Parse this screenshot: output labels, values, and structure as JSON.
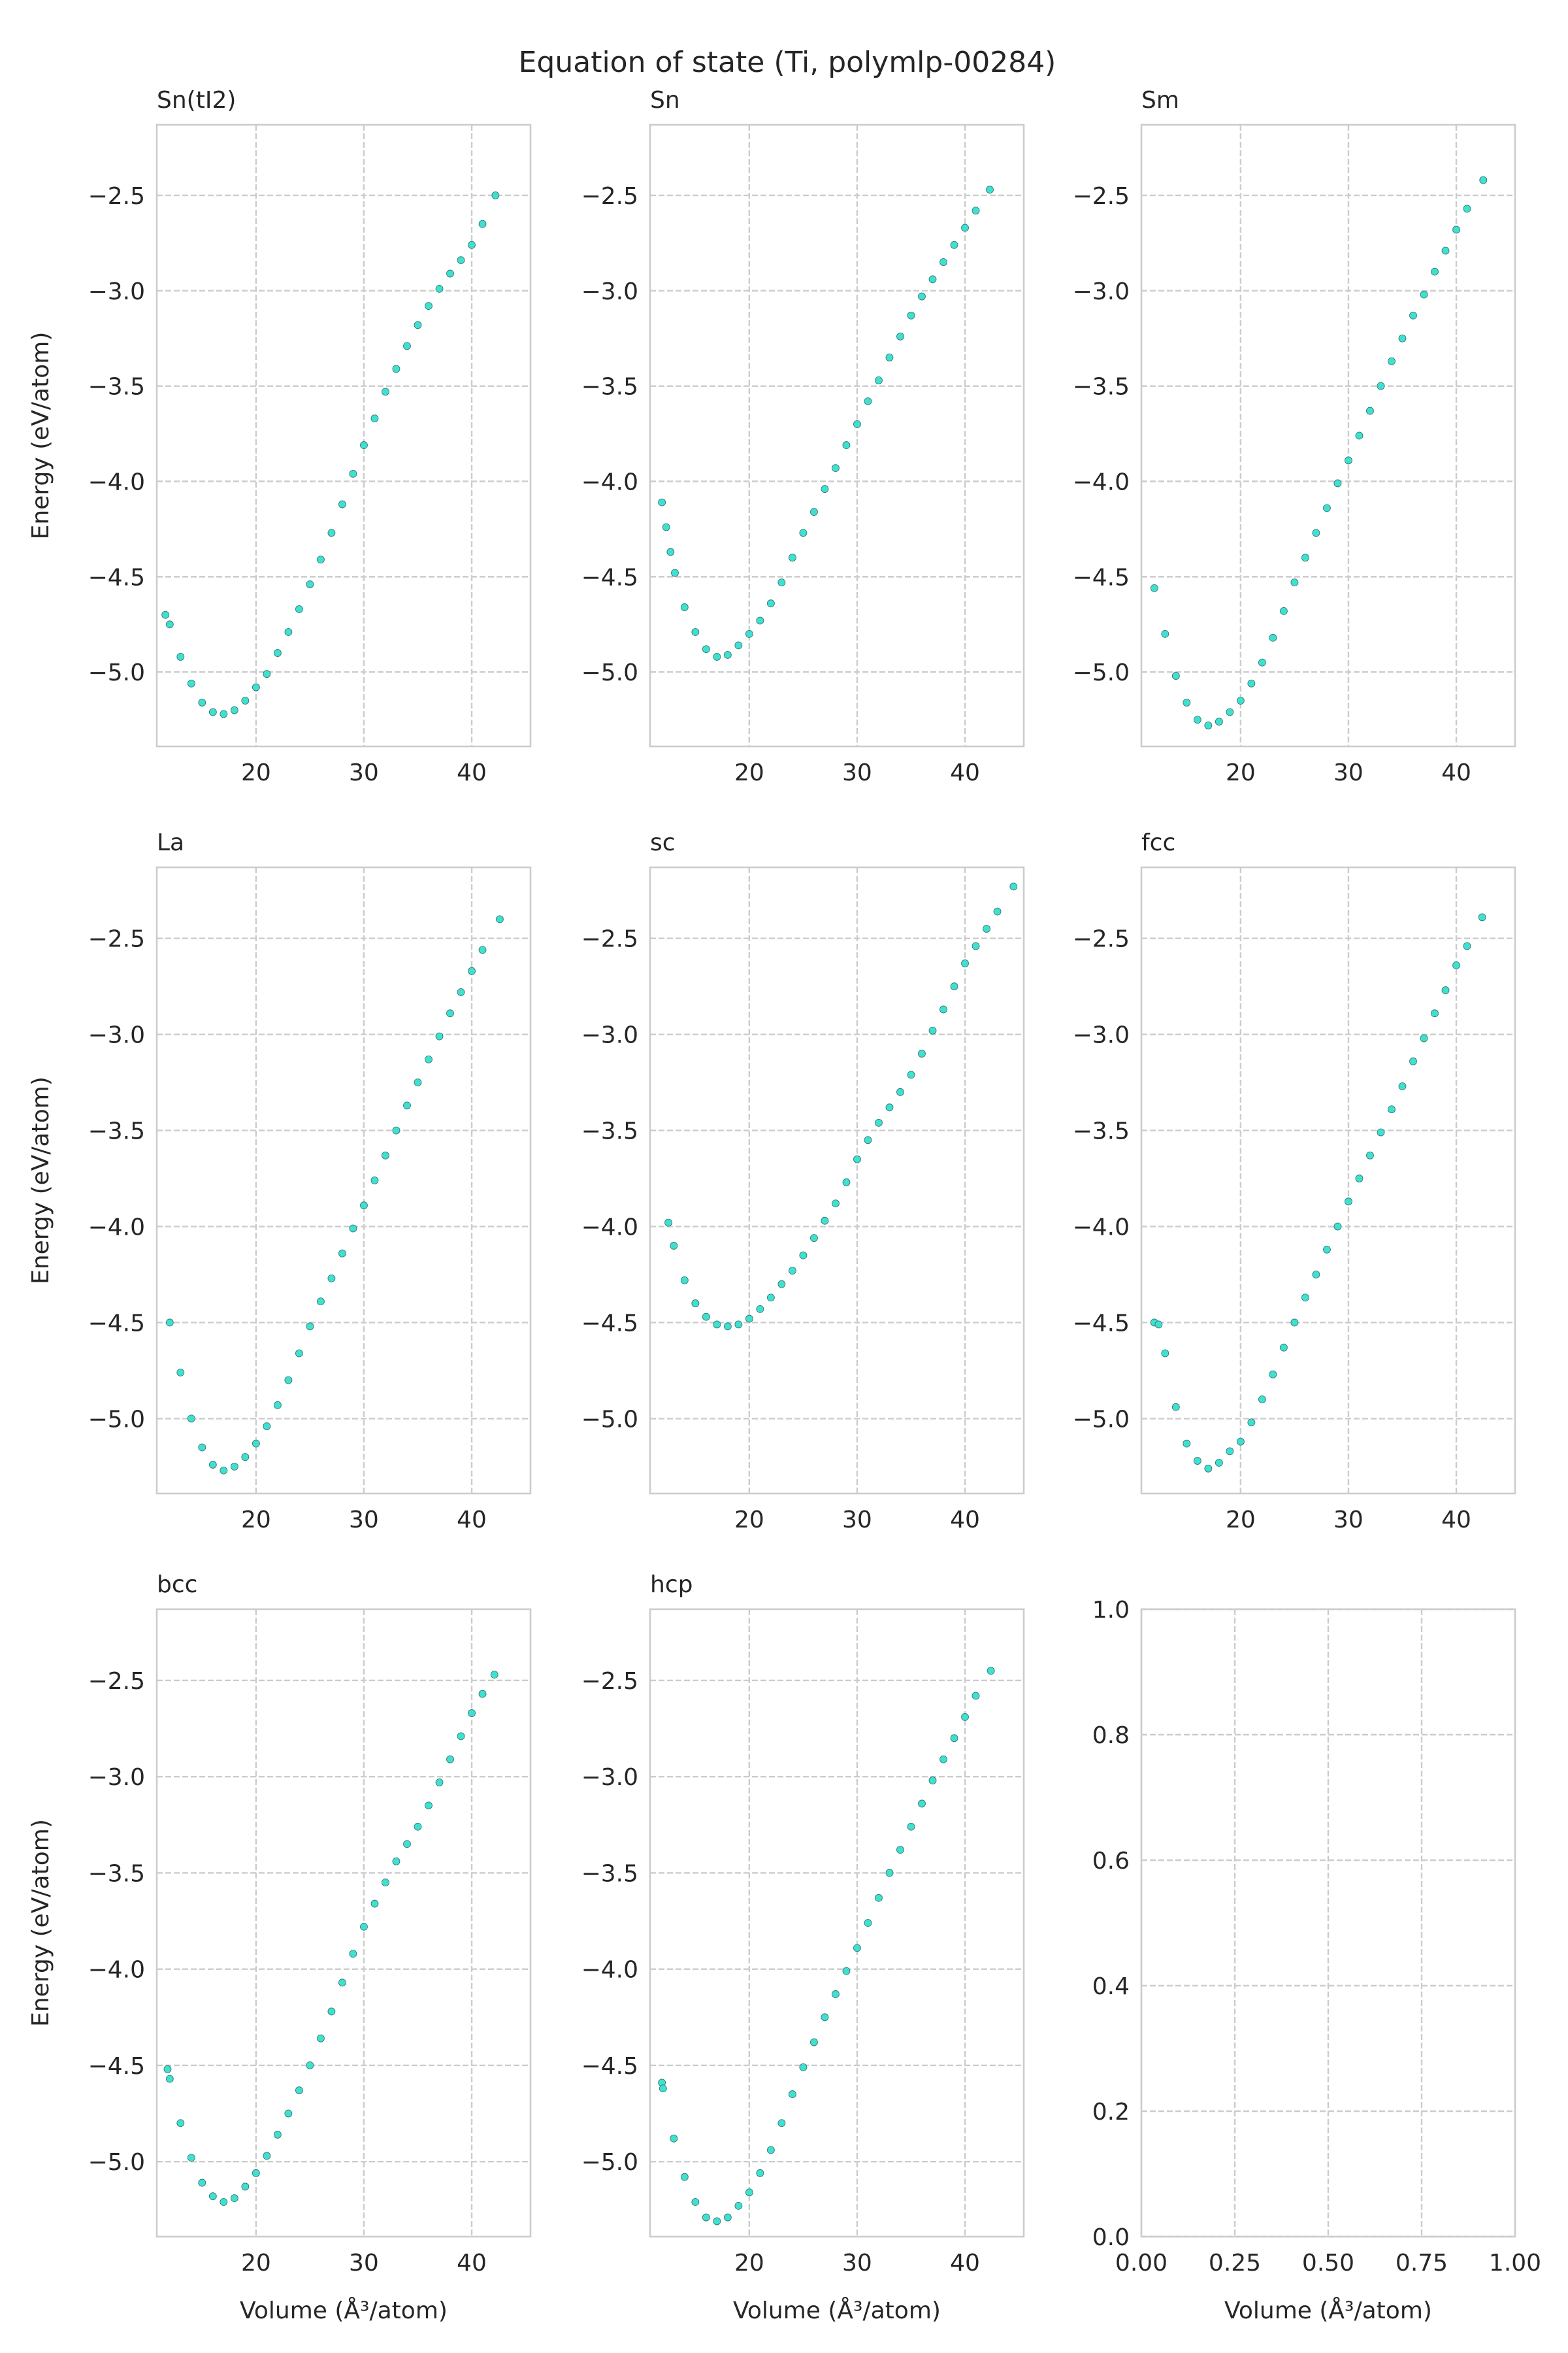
{
  "figure": {
    "title": "Equation of state (Ti, polymlp-00284)"
  },
  "chart_data": [
    {
      "type": "scatter",
      "title": "Sn(tI2)",
      "xlabel": "",
      "ylabel": "Energy (eV/atom)",
      "xlim": [
        10.8,
        45.45
      ],
      "ylim": [
        -5.39,
        -2.13
      ],
      "xticks": [
        20,
        30,
        40
      ],
      "xtick_labels": [
        "20",
        "30",
        "40"
      ],
      "yticks": [
        -5.0,
        -4.5,
        -4.0,
        -3.5,
        -3.0,
        -2.5
      ],
      "ytick_labels": [
        "−5.0",
        "−4.5",
        "−4.0",
        "−3.5",
        "−3.0",
        "−2.5"
      ],
      "grid": true,
      "marker_color": "#40e0d0",
      "points": [
        [
          11.6,
          -4.7
        ],
        [
          12,
          -4.75
        ],
        [
          13,
          -4.92
        ],
        [
          14,
          -5.06
        ],
        [
          15,
          -5.16
        ],
        [
          16,
          -5.21
        ],
        [
          17,
          -5.22
        ],
        [
          18,
          -5.2
        ],
        [
          19,
          -5.15
        ],
        [
          20,
          -5.08
        ],
        [
          21,
          -5.01
        ],
        [
          22,
          -4.9
        ],
        [
          23,
          -4.79
        ],
        [
          24,
          -4.67
        ],
        [
          25,
          -4.54
        ],
        [
          26,
          -4.41
        ],
        [
          27,
          -4.27
        ],
        [
          28,
          -4.12
        ],
        [
          29,
          -3.96
        ],
        [
          30,
          -3.81
        ],
        [
          31,
          -3.67
        ],
        [
          32,
          -3.53
        ],
        [
          33,
          -3.41
        ],
        [
          34,
          -3.29
        ],
        [
          35,
          -3.18
        ],
        [
          36,
          -3.08
        ],
        [
          37,
          -2.99
        ],
        [
          38,
          -2.91
        ],
        [
          39,
          -2.84
        ],
        [
          40,
          -2.76
        ],
        [
          41,
          -2.65
        ],
        [
          42.2,
          -2.5
        ]
      ]
    },
    {
      "type": "scatter",
      "title": "Sn",
      "xlabel": "",
      "ylabel": "",
      "xlim": [
        10.8,
        45.45
      ],
      "ylim": [
        -5.39,
        -2.13
      ],
      "xticks": [
        20,
        30,
        40
      ],
      "xtick_labels": [
        "20",
        "30",
        "40"
      ],
      "yticks": [
        -5.0,
        -4.5,
        -4.0,
        -3.5,
        -3.0,
        -2.5
      ],
      "ytick_labels": [
        "−5.0",
        "−4.5",
        "−4.0",
        "−3.5",
        "−3.0",
        "−2.5"
      ],
      "grid": true,
      "marker_color": "#40e0d0",
      "points": [
        [
          11.9,
          -4.11
        ],
        [
          12.3,
          -4.24
        ],
        [
          12.7,
          -4.37
        ],
        [
          13.1,
          -4.48
        ],
        [
          14,
          -4.66
        ],
        [
          15,
          -4.79
        ],
        [
          16,
          -4.88
        ],
        [
          17,
          -4.92
        ],
        [
          18,
          -4.91
        ],
        [
          19,
          -4.86
        ],
        [
          20,
          -4.8
        ],
        [
          21,
          -4.73
        ],
        [
          22,
          -4.64
        ],
        [
          23,
          -4.53
        ],
        [
          24,
          -4.4
        ],
        [
          25,
          -4.27
        ],
        [
          26,
          -4.16
        ],
        [
          27,
          -4.04
        ],
        [
          28,
          -3.93
        ],
        [
          29,
          -3.81
        ],
        [
          30,
          -3.7
        ],
        [
          31,
          -3.58
        ],
        [
          32,
          -3.47
        ],
        [
          33,
          -3.35
        ],
        [
          34,
          -3.24
        ],
        [
          35,
          -3.13
        ],
        [
          36,
          -3.03
        ],
        [
          37,
          -2.94
        ],
        [
          38,
          -2.85
        ],
        [
          39,
          -2.76
        ],
        [
          40,
          -2.67
        ],
        [
          41,
          -2.58
        ],
        [
          42.3,
          -2.47
        ]
      ]
    },
    {
      "type": "scatter",
      "title": "Sm",
      "xlabel": "",
      "ylabel": "",
      "xlim": [
        10.8,
        45.45
      ],
      "ylim": [
        -5.39,
        -2.13
      ],
      "xticks": [
        20,
        30,
        40
      ],
      "xtick_labels": [
        "20",
        "30",
        "40"
      ],
      "yticks": [
        -5.0,
        -4.5,
        -4.0,
        -3.5,
        -3.0,
        -2.5
      ],
      "ytick_labels": [
        "−5.0",
        "−4.5",
        "−4.0",
        "−3.5",
        "−3.0",
        "−2.5"
      ],
      "grid": true,
      "marker_color": "#40e0d0",
      "points": [
        [
          12,
          -4.56
        ],
        [
          13,
          -4.8
        ],
        [
          14,
          -5.02
        ],
        [
          15,
          -5.16
        ],
        [
          16,
          -5.25
        ],
        [
          17,
          -5.28
        ],
        [
          18,
          -5.26
        ],
        [
          19,
          -5.21
        ],
        [
          20,
          -5.15
        ],
        [
          21,
          -5.06
        ],
        [
          22,
          -4.95
        ],
        [
          23,
          -4.82
        ],
        [
          24,
          -4.68
        ],
        [
          25,
          -4.53
        ],
        [
          26,
          -4.4
        ],
        [
          27,
          -4.27
        ],
        [
          28,
          -4.14
        ],
        [
          29,
          -4.01
        ],
        [
          30,
          -3.89
        ],
        [
          31,
          -3.76
        ],
        [
          32,
          -3.63
        ],
        [
          33,
          -3.5
        ],
        [
          34,
          -3.37
        ],
        [
          35,
          -3.25
        ],
        [
          36,
          -3.13
        ],
        [
          37,
          -3.02
        ],
        [
          38,
          -2.9
        ],
        [
          39,
          -2.79
        ],
        [
          40,
          -2.68
        ],
        [
          41,
          -2.57
        ],
        [
          42.5,
          -2.42
        ]
      ]
    },
    {
      "type": "scatter",
      "title": "La",
      "xlabel": "",
      "ylabel": "Energy (eV/atom)",
      "xlim": [
        10.8,
        45.45
      ],
      "ylim": [
        -5.39,
        -2.13
      ],
      "xticks": [
        20,
        30,
        40
      ],
      "xtick_labels": [
        "20",
        "30",
        "40"
      ],
      "yticks": [
        -5.0,
        -4.5,
        -4.0,
        -3.5,
        -3.0,
        -2.5
      ],
      "ytick_labels": [
        "−5.0",
        "−4.5",
        "−4.0",
        "−3.5",
        "−3.0",
        "−2.5"
      ],
      "grid": true,
      "marker_color": "#40e0d0",
      "points": [
        [
          12,
          -4.5
        ],
        [
          13,
          -4.76
        ],
        [
          14,
          -5.0
        ],
        [
          15,
          -5.15
        ],
        [
          16,
          -5.24
        ],
        [
          17,
          -5.27
        ],
        [
          18,
          -5.25
        ],
        [
          19,
          -5.2
        ],
        [
          20,
          -5.13
        ],
        [
          21,
          -5.04
        ],
        [
          22,
          -4.93
        ],
        [
          23,
          -4.8
        ],
        [
          24,
          -4.66
        ],
        [
          25,
          -4.52
        ],
        [
          26,
          -4.39
        ],
        [
          27,
          -4.27
        ],
        [
          28,
          -4.14
        ],
        [
          29,
          -4.01
        ],
        [
          30,
          -3.89
        ],
        [
          31,
          -3.76
        ],
        [
          32,
          -3.63
        ],
        [
          33,
          -3.5
        ],
        [
          34,
          -3.37
        ],
        [
          35,
          -3.25
        ],
        [
          36,
          -3.13
        ],
        [
          37,
          -3.01
        ],
        [
          38,
          -2.89
        ],
        [
          39,
          -2.78
        ],
        [
          40,
          -2.67
        ],
        [
          41,
          -2.56
        ],
        [
          42.6,
          -2.4
        ]
      ]
    },
    {
      "type": "scatter",
      "title": "sc",
      "xlabel": "",
      "ylabel": "",
      "xlim": [
        10.8,
        45.45
      ],
      "ylim": [
        -5.39,
        -2.13
      ],
      "xticks": [
        20,
        30,
        40
      ],
      "xtick_labels": [
        "20",
        "30",
        "40"
      ],
      "yticks": [
        -5.0,
        -4.5,
        -4.0,
        -3.5,
        -3.0,
        -2.5
      ],
      "ytick_labels": [
        "−5.0",
        "−4.5",
        "−4.0",
        "−3.5",
        "−3.0",
        "−2.5"
      ],
      "grid": true,
      "marker_color": "#40e0d0",
      "points": [
        [
          12.5,
          -3.98
        ],
        [
          13,
          -4.1
        ],
        [
          14,
          -4.28
        ],
        [
          15,
          -4.4
        ],
        [
          16,
          -4.47
        ],
        [
          17,
          -4.51
        ],
        [
          18,
          -4.52
        ],
        [
          19,
          -4.51
        ],
        [
          20,
          -4.48
        ],
        [
          21,
          -4.43
        ],
        [
          22,
          -4.37
        ],
        [
          23,
          -4.3
        ],
        [
          24,
          -4.23
        ],
        [
          25,
          -4.15
        ],
        [
          26,
          -4.06
        ],
        [
          27,
          -3.97
        ],
        [
          28,
          -3.88
        ],
        [
          29,
          -3.77
        ],
        [
          30,
          -3.65
        ],
        [
          31,
          -3.55
        ],
        [
          32,
          -3.46
        ],
        [
          33,
          -3.38
        ],
        [
          34,
          -3.3
        ],
        [
          35,
          -3.21
        ],
        [
          36,
          -3.1
        ],
        [
          37,
          -2.98
        ],
        [
          38,
          -2.87
        ],
        [
          39,
          -2.75
        ],
        [
          40,
          -2.63
        ],
        [
          41,
          -2.54
        ],
        [
          42,
          -2.45
        ],
        [
          43,
          -2.36
        ],
        [
          44.5,
          -2.23
        ]
      ]
    },
    {
      "type": "scatter",
      "title": "fcc",
      "xlabel": "",
      "ylabel": "",
      "xlim": [
        10.8,
        45.45
      ],
      "ylim": [
        -5.39,
        -2.13
      ],
      "xticks": [
        20,
        30,
        40
      ],
      "xtick_labels": [
        "20",
        "30",
        "40"
      ],
      "yticks": [
        -5.0,
        -4.5,
        -4.0,
        -3.5,
        -3.0,
        -2.5
      ],
      "ytick_labels": [
        "−5.0",
        "−4.5",
        "−4.0",
        "−3.5",
        "−3.0",
        "−2.5"
      ],
      "grid": true,
      "marker_color": "#40e0d0",
      "points": [
        [
          12,
          -4.5
        ],
        [
          12.4,
          -4.51
        ],
        [
          13,
          -4.66
        ],
        [
          14,
          -4.94
        ],
        [
          15,
          -5.13
        ],
        [
          16,
          -5.22
        ],
        [
          17,
          -5.26
        ],
        [
          18,
          -5.23
        ],
        [
          19,
          -5.17
        ],
        [
          20,
          -5.12
        ],
        [
          21,
          -5.02
        ],
        [
          22,
          -4.9
        ],
        [
          23,
          -4.77
        ],
        [
          24,
          -4.63
        ],
        [
          25,
          -4.5
        ],
        [
          26,
          -4.37
        ],
        [
          27,
          -4.25
        ],
        [
          28,
          -4.12
        ],
        [
          29,
          -4.0
        ],
        [
          30,
          -3.87
        ],
        [
          31,
          -3.75
        ],
        [
          32,
          -3.63
        ],
        [
          33,
          -3.51
        ],
        [
          34,
          -3.39
        ],
        [
          35,
          -3.27
        ],
        [
          36,
          -3.14
        ],
        [
          37,
          -3.02
        ],
        [
          38,
          -2.89
        ],
        [
          39,
          -2.77
        ],
        [
          40,
          -2.64
        ],
        [
          41,
          -2.54
        ],
        [
          42.4,
          -2.39
        ]
      ]
    },
    {
      "type": "scatter",
      "title": "bcc",
      "xlabel": "Volume (Å³/atom)",
      "ylabel": "Energy (eV/atom)",
      "xlim": [
        10.8,
        45.45
      ],
      "ylim": [
        -5.39,
        -2.13
      ],
      "xticks": [
        20,
        30,
        40
      ],
      "xtick_labels": [
        "20",
        "30",
        "40"
      ],
      "yticks": [
        -5.0,
        -4.5,
        -4.0,
        -3.5,
        -3.0,
        -2.5
      ],
      "ytick_labels": [
        "−5.0",
        "−4.5",
        "−4.0",
        "−3.5",
        "−3.0",
        "−2.5"
      ],
      "grid": true,
      "marker_color": "#40e0d0",
      "points": [
        [
          11.8,
          -4.52
        ],
        [
          12,
          -4.57
        ],
        [
          13,
          -4.8
        ],
        [
          14,
          -4.98
        ],
        [
          15,
          -5.11
        ],
        [
          16,
          -5.18
        ],
        [
          17,
          -5.21
        ],
        [
          18,
          -5.19
        ],
        [
          19,
          -5.13
        ],
        [
          20,
          -5.06
        ],
        [
          21,
          -4.97
        ],
        [
          22,
          -4.86
        ],
        [
          23,
          -4.75
        ],
        [
          24,
          -4.63
        ],
        [
          25,
          -4.5
        ],
        [
          26,
          -4.36
        ],
        [
          27,
          -4.22
        ],
        [
          28,
          -4.07
        ],
        [
          29,
          -3.92
        ],
        [
          30,
          -3.78
        ],
        [
          31,
          -3.66
        ],
        [
          32,
          -3.55
        ],
        [
          33,
          -3.44
        ],
        [
          34,
          -3.35
        ],
        [
          35,
          -3.26
        ],
        [
          36,
          -3.15
        ],
        [
          37,
          -3.03
        ],
        [
          38,
          -2.91
        ],
        [
          39,
          -2.79
        ],
        [
          40,
          -2.67
        ],
        [
          41,
          -2.57
        ],
        [
          42.1,
          -2.47
        ]
      ]
    },
    {
      "type": "scatter",
      "title": "hcp",
      "xlabel": "Volume (Å³/atom)",
      "ylabel": "",
      "xlim": [
        10.8,
        45.45
      ],
      "ylim": [
        -5.39,
        -2.13
      ],
      "xticks": [
        20,
        30,
        40
      ],
      "xtick_labels": [
        "20",
        "30",
        "40"
      ],
      "yticks": [
        -5.0,
        -4.5,
        -4.0,
        -3.5,
        -3.0,
        -2.5
      ],
      "ytick_labels": [
        "−5.0",
        "−4.5",
        "−4.0",
        "−3.5",
        "−3.0",
        "−2.5"
      ],
      "grid": true,
      "marker_color": "#40e0d0",
      "points": [
        [
          11.9,
          -4.59
        ],
        [
          12,
          -4.62
        ],
        [
          13,
          -4.88
        ],
        [
          14,
          -5.08
        ],
        [
          15,
          -5.21
        ],
        [
          16,
          -5.29
        ],
        [
          17,
          -5.31
        ],
        [
          18,
          -5.29
        ],
        [
          19,
          -5.23
        ],
        [
          20,
          -5.16
        ],
        [
          21,
          -5.06
        ],
        [
          22,
          -4.94
        ],
        [
          23,
          -4.8
        ],
        [
          24,
          -4.65
        ],
        [
          25,
          -4.51
        ],
        [
          26,
          -4.38
        ],
        [
          27,
          -4.25
        ],
        [
          28,
          -4.13
        ],
        [
          29,
          -4.01
        ],
        [
          30,
          -3.89
        ],
        [
          31,
          -3.76
        ],
        [
          32,
          -3.63
        ],
        [
          33,
          -3.5
        ],
        [
          34,
          -3.38
        ],
        [
          35,
          -3.26
        ],
        [
          36,
          -3.14
        ],
        [
          37,
          -3.02
        ],
        [
          38,
          -2.91
        ],
        [
          39,
          -2.8
        ],
        [
          40,
          -2.69
        ],
        [
          41,
          -2.58
        ],
        [
          42.4,
          -2.45
        ]
      ]
    },
    {
      "type": "scatter",
      "title": "",
      "xlabel": "Volume (Å³/atom)",
      "ylabel": "",
      "xlim": [
        0,
        1
      ],
      "ylim": [
        0,
        1
      ],
      "xticks": [
        0,
        0.25,
        0.5,
        0.75,
        1.0
      ],
      "xtick_labels": [
        "0.00",
        "0.25",
        "0.50",
        "0.75",
        "1.00"
      ],
      "yticks": [
        0,
        0.2,
        0.4,
        0.6,
        0.8,
        1.0
      ],
      "ytick_labels": [
        "0.0",
        "0.2",
        "0.4",
        "0.6",
        "0.8",
        "1.0"
      ],
      "grid": true,
      "marker_color": "#40e0d0",
      "points": []
    }
  ]
}
